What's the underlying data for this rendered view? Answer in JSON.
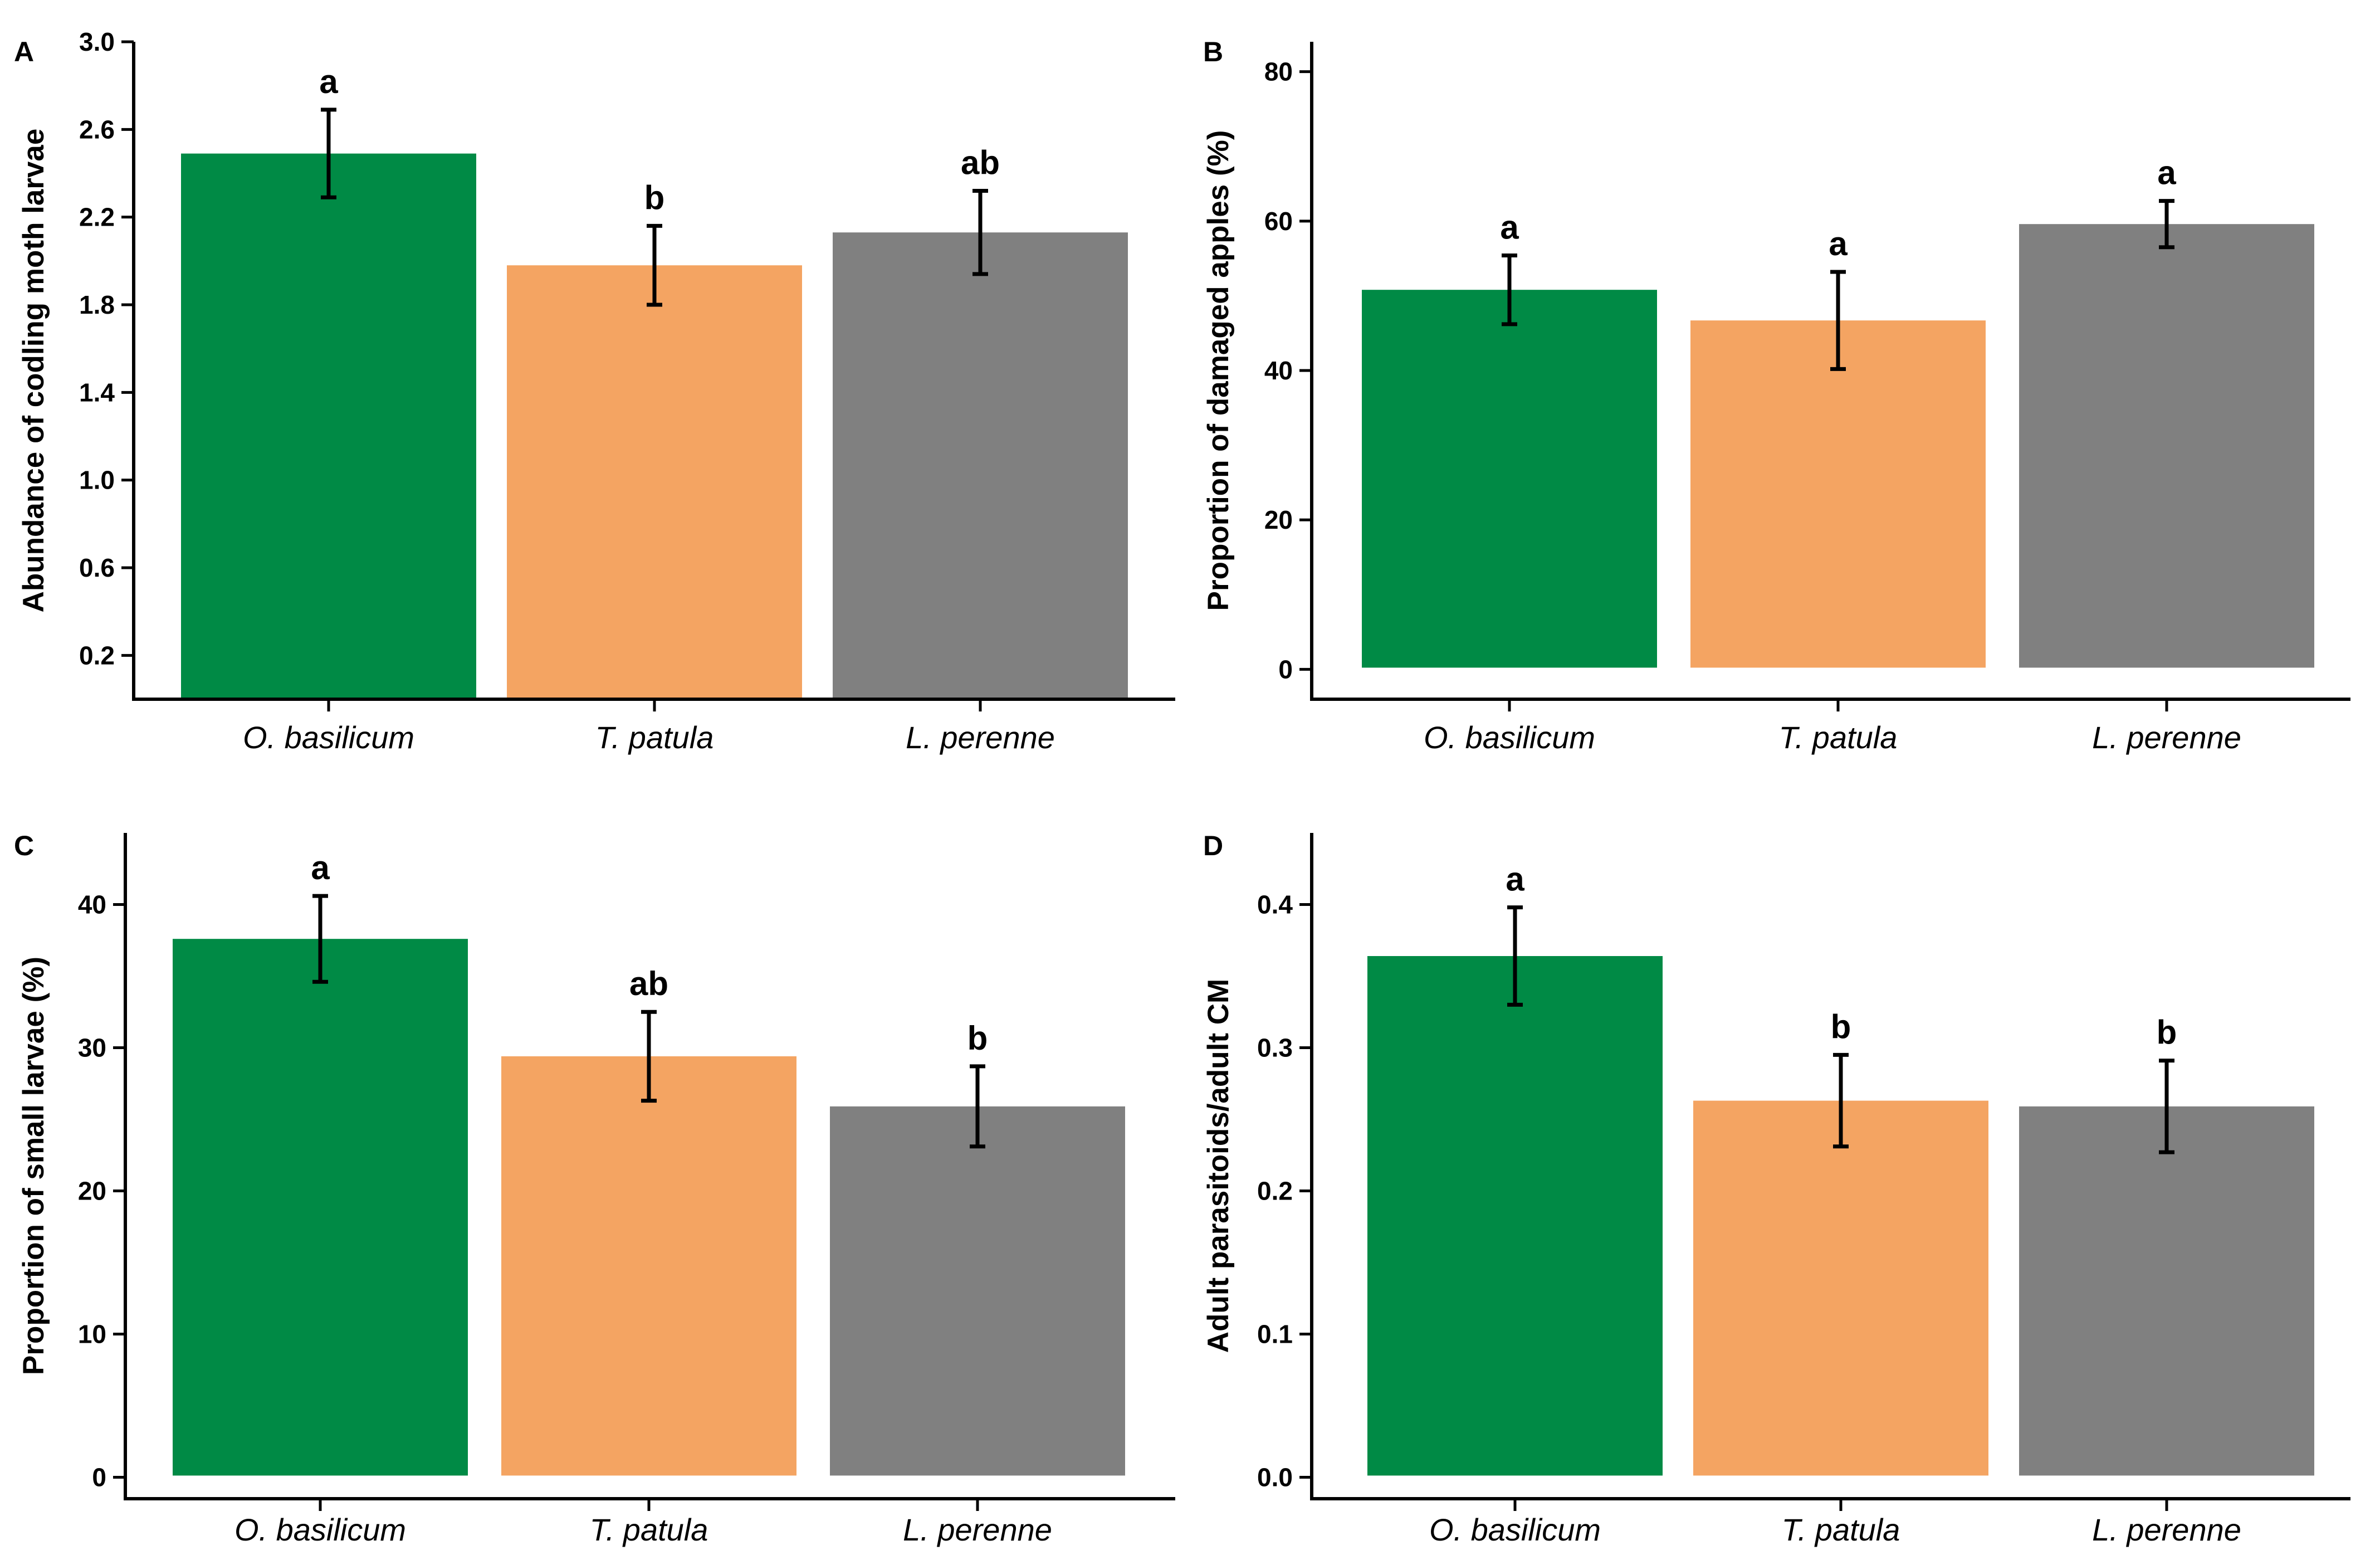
{
  "chart_data": [
    {
      "panel": "A",
      "type": "bar",
      "categories": [
        "O. basilicum",
        "T. patula",
        "L. perenne"
      ],
      "values": [
        2.49,
        1.98,
        2.13
      ],
      "errors": [
        0.2,
        0.18,
        0.19
      ],
      "significance": [
        "a",
        "b",
        "ab"
      ],
      "ylabel": "Abundance of codling moth larvae",
      "ylim": [
        0,
        3.0
      ],
      "yticks": [
        0.2,
        0.6,
        1.0,
        1.4,
        1.8,
        2.2,
        2.6,
        3.0
      ],
      "ytick_labels": [
        "0.2",
        "0.6",
        "1.0",
        "1.4",
        "1.8",
        "2.2",
        "2.6",
        "3.0"
      ],
      "colors": [
        "#008a45",
        "#f4a462",
        "#808080"
      ]
    },
    {
      "panel": "B",
      "type": "bar",
      "categories": [
        "O. basilicum",
        "T. patula",
        "L. perenne"
      ],
      "values": [
        50.8,
        46.7,
        59.6
      ],
      "errors": [
        4.6,
        6.5,
        3.1
      ],
      "significance": [
        "a",
        "a",
        "a"
      ],
      "ylabel": "Proportion of damaged apples (%)",
      "ylim": [
        -4,
        84
      ],
      "yticks": [
        0,
        20,
        40,
        60,
        80
      ],
      "ytick_labels": [
        "0",
        "20",
        "40",
        "60",
        "80"
      ],
      "colors": [
        "#008a45",
        "#f4a462",
        "#808080"
      ]
    },
    {
      "panel": "C",
      "type": "bar",
      "categories": [
        "O. basilicum",
        "T. patula",
        "L. perenne"
      ],
      "values": [
        37.6,
        29.4,
        25.9
      ],
      "errors": [
        3.0,
        3.1,
        2.8
      ],
      "significance": [
        "a",
        "ab",
        "b"
      ],
      "ylabel": "Proportion of small larvae (%)",
      "ylim": [
        -1.5,
        45
      ],
      "yticks": [
        0,
        10,
        20,
        30,
        40
      ],
      "ytick_labels": [
        "0",
        "10",
        "20",
        "30",
        "40"
      ],
      "colors": [
        "#008a45",
        "#f4a462",
        "#808080"
      ]
    },
    {
      "panel": "D",
      "type": "bar",
      "categories": [
        "O. basilicum",
        "T. patula",
        "L. perenne"
      ],
      "values": [
        0.364,
        0.263,
        0.259
      ],
      "errors": [
        0.034,
        0.032,
        0.032
      ],
      "significance": [
        "a",
        "b",
        "b"
      ],
      "ylabel": "Adult parasitoids/adult CM",
      "ylim": [
        -0.015,
        0.45
      ],
      "yticks": [
        0.0,
        0.1,
        0.2,
        0.3,
        0.4
      ],
      "ytick_labels": [
        "0.0",
        "0.1",
        "0.2",
        "0.3",
        "0.4"
      ],
      "colors": [
        "#008a45",
        "#f4a462",
        "#808080"
      ]
    }
  ]
}
